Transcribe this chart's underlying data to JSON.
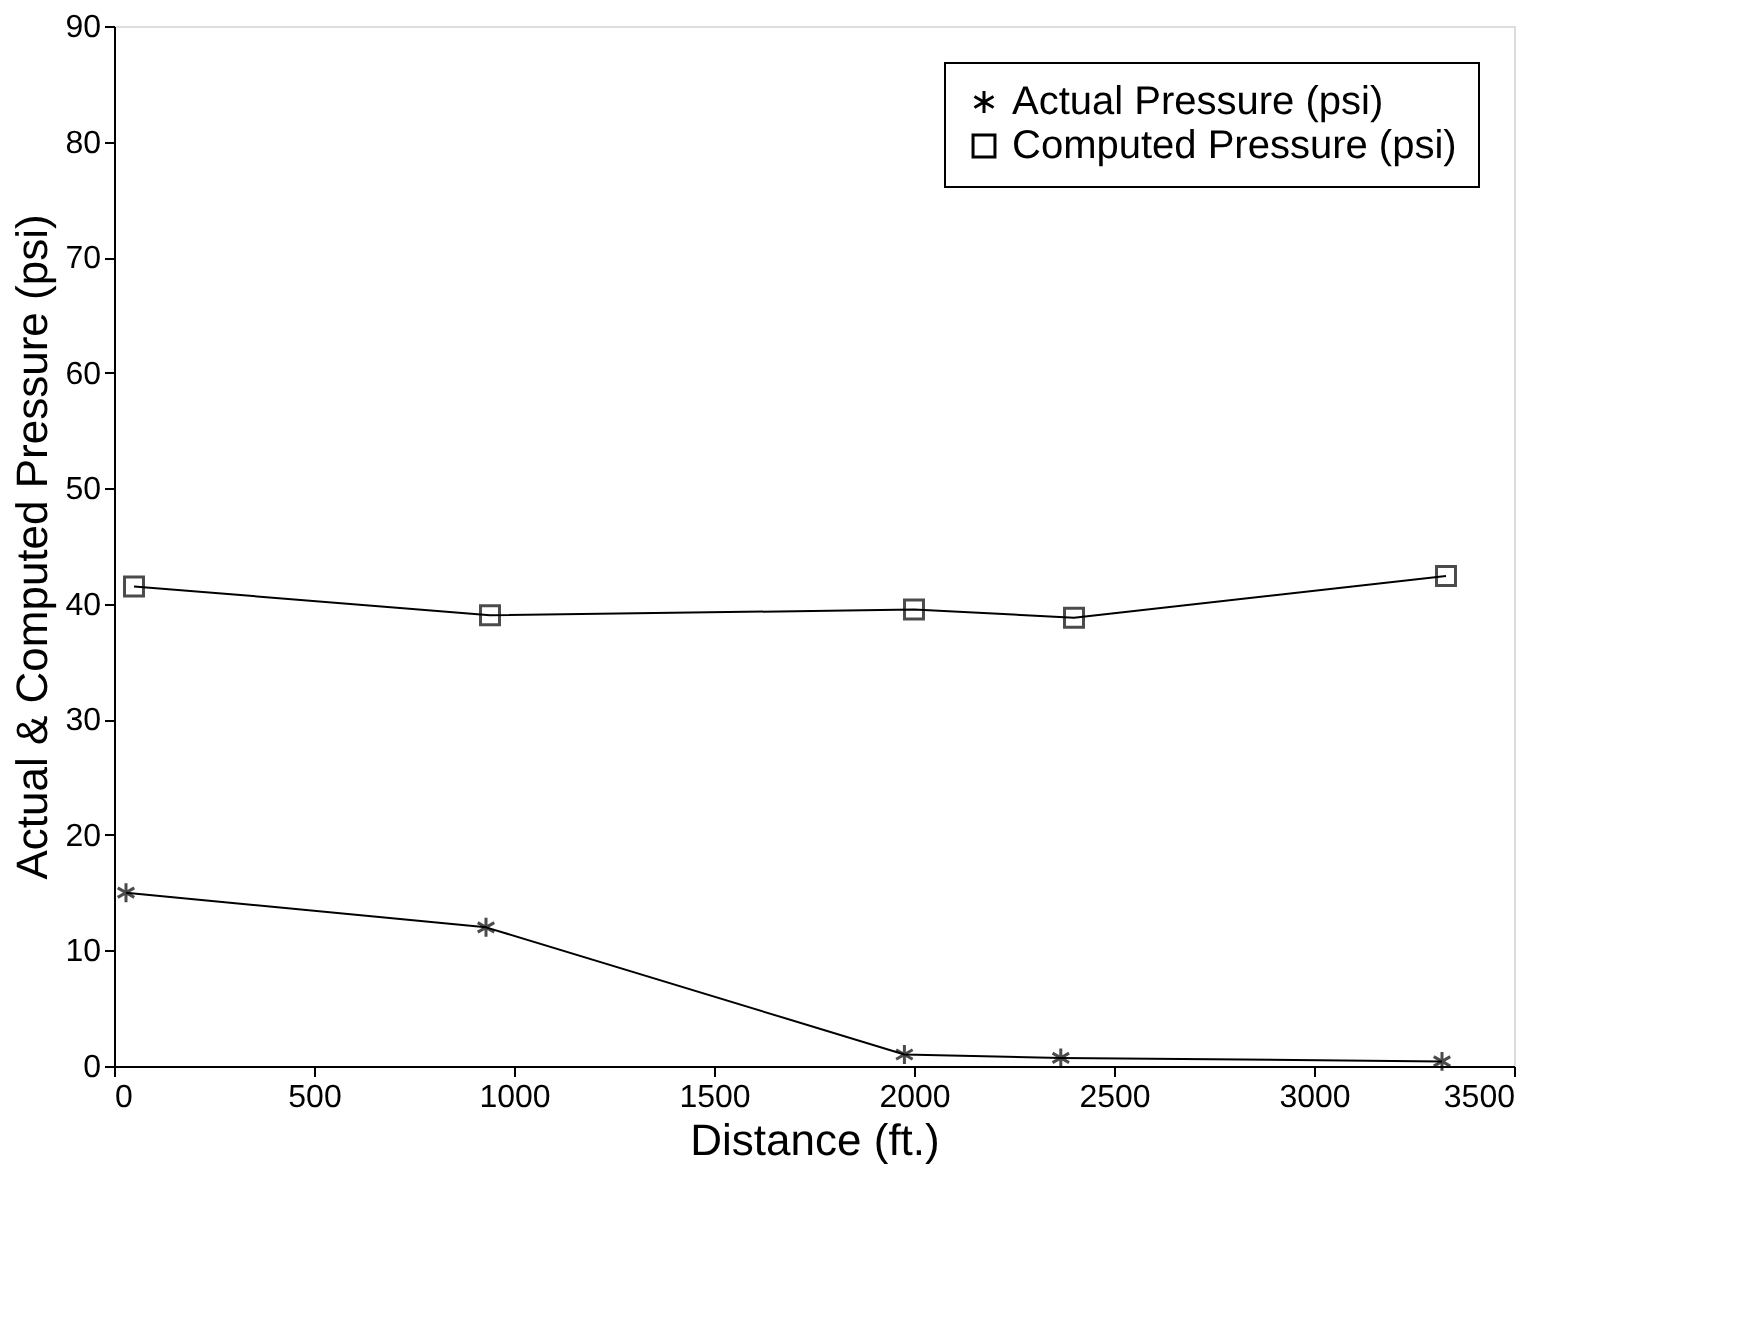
{
  "chart_data": {
    "type": "line",
    "xlabel": "Distance (ft.)",
    "ylabel": "Actual & Computed Pressure (psi)",
    "series": [
      {
        "name": "Actual Pressure (psi)",
        "color": "#000000",
        "marker": "cross",
        "x": [
          30,
          930,
          1976,
          2367,
          3320
        ],
        "values": [
          15,
          12,
          1,
          0.7,
          0.4
        ]
      },
      {
        "name": "Computed Pressure (psi)",
        "color": "#000000",
        "marker": "square",
        "x": [
          50,
          940,
          2000,
          2400,
          3330
        ],
        "values": [
          41.5,
          39,
          39.5,
          38.8,
          42.4
        ]
      }
    ],
    "xlim": [
      0,
      3500
    ],
    "xticks": [
      0,
      500,
      1000,
      1500,
      2000,
      2500,
      3000,
      3500
    ],
    "ylim": [
      0,
      90
    ],
    "yticks": [
      0,
      10,
      20,
      30,
      40,
      50,
      60,
      70,
      80,
      90
    ],
    "grid": false,
    "legend": "top right",
    "line_style": "solid"
  }
}
